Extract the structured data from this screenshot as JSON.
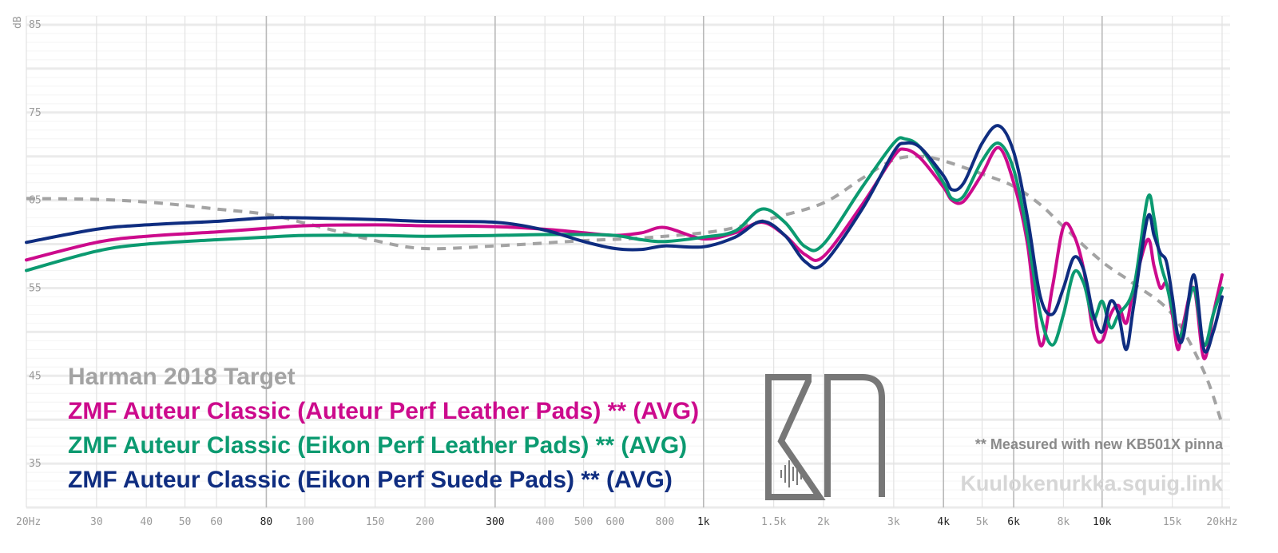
{
  "chart_data": {
    "type": "line",
    "ylabel": "dB",
    "x_scale": "log",
    "xlim": [
      20,
      20000
    ],
    "ylim": [
      30,
      86
    ],
    "y_ticks": [
      85,
      75,
      65,
      55,
      45,
      35
    ],
    "x_ticks": [
      {
        "f": 20,
        "label": "20Hz",
        "major": false
      },
      {
        "f": 30,
        "label": "30",
        "major": false
      },
      {
        "f": 40,
        "label": "40",
        "major": false
      },
      {
        "f": 50,
        "label": "50",
        "major": false
      },
      {
        "f": 60,
        "label": "60",
        "major": false
      },
      {
        "f": 80,
        "label": "80",
        "major": true
      },
      {
        "f": 100,
        "label": "100",
        "major": false
      },
      {
        "f": 150,
        "label": "150",
        "major": false
      },
      {
        "f": 200,
        "label": "200",
        "major": false
      },
      {
        "f": 300,
        "label": "300",
        "major": true
      },
      {
        "f": 400,
        "label": "400",
        "major": false
      },
      {
        "f": 500,
        "label": "500",
        "major": false
      },
      {
        "f": 600,
        "label": "600",
        "major": false
      },
      {
        "f": 800,
        "label": "800",
        "major": false
      },
      {
        "f": 1000,
        "label": "1k",
        "major": true
      },
      {
        "f": 1500,
        "label": "1.5k",
        "major": false
      },
      {
        "f": 2000,
        "label": "2k",
        "major": false
      },
      {
        "f": 3000,
        "label": "3k",
        "major": false
      },
      {
        "f": 4000,
        "label": "4k",
        "major": true
      },
      {
        "f": 5000,
        "label": "5k",
        "major": false
      },
      {
        "f": 6000,
        "label": "6k",
        "major": true
      },
      {
        "f": 8000,
        "label": "8k",
        "major": false
      },
      {
        "f": 10000,
        "label": "10k",
        "major": true
      },
      {
        "f": 15000,
        "label": "15k",
        "major": false
      },
      {
        "f": 20000,
        "label": "20kHz",
        "major": false
      }
    ],
    "series": [
      {
        "name": "Harman 2018 Target",
        "color": "#a3a3a3",
        "dashed": true,
        "points": [
          [
            20,
            65.2
          ],
          [
            30,
            65.1
          ],
          [
            40,
            64.8
          ],
          [
            50,
            64.4
          ],
          [
            60,
            64.0
          ],
          [
            80,
            63.4
          ],
          [
            100,
            62.4
          ],
          [
            150,
            60.4
          ],
          [
            200,
            59.5
          ],
          [
            300,
            59.8
          ],
          [
            500,
            60.4
          ],
          [
            700,
            60.7
          ],
          [
            1000,
            61.3
          ],
          [
            1200,
            61.9
          ],
          [
            1500,
            63.0
          ],
          [
            2000,
            64.7
          ],
          [
            2500,
            67.5
          ],
          [
            3000,
            69.6
          ],
          [
            3500,
            70.0
          ],
          [
            4000,
            69.5
          ],
          [
            5000,
            68.0
          ],
          [
            6000,
            66.6
          ],
          [
            7000,
            64.5
          ],
          [
            8000,
            62.0
          ],
          [
            10000,
            58.0
          ],
          [
            12000,
            55.5
          ],
          [
            15000,
            52.0
          ],
          [
            18000,
            45.5
          ],
          [
            20000,
            39.5
          ]
        ]
      },
      {
        "name": "ZMF Auteur Classic (Auteur Perf Leather Pads) ** (AVG)",
        "color": "#cc0a8c",
        "dashed": false,
        "points": [
          [
            20,
            58.2
          ],
          [
            30,
            60.2
          ],
          [
            40,
            60.9
          ],
          [
            60,
            61.4
          ],
          [
            80,
            61.8
          ],
          [
            100,
            62.1
          ],
          [
            150,
            62.2
          ],
          [
            200,
            62.1
          ],
          [
            300,
            62.0
          ],
          [
            400,
            61.7
          ],
          [
            500,
            61.3
          ],
          [
            600,
            61.0
          ],
          [
            700,
            61.3
          ],
          [
            800,
            61.9
          ],
          [
            1000,
            60.6
          ],
          [
            1200,
            61.3
          ],
          [
            1400,
            62.5
          ],
          [
            1600,
            61.0
          ],
          [
            1800,
            58.8
          ],
          [
            2000,
            58.6
          ],
          [
            2500,
            64.5
          ],
          [
            3000,
            70.0
          ],
          [
            3200,
            70.8
          ],
          [
            3500,
            69.8
          ],
          [
            4000,
            66.5
          ],
          [
            4200,
            65.0
          ],
          [
            4500,
            64.9
          ],
          [
            5000,
            68.0
          ],
          [
            5500,
            71.0
          ],
          [
            6000,
            67.0
          ],
          [
            6500,
            60.0
          ],
          [
            7000,
            48.5
          ],
          [
            7500,
            55.0
          ],
          [
            8000,
            62.0
          ],
          [
            8500,
            61.0
          ],
          [
            9000,
            57.0
          ],
          [
            9500,
            50.0
          ],
          [
            10000,
            49.0
          ],
          [
            10500,
            52.0
          ],
          [
            11000,
            53.0
          ],
          [
            11500,
            51.0
          ],
          [
            12000,
            55.0
          ],
          [
            13000,
            60.5
          ],
          [
            13500,
            57.5
          ],
          [
            14000,
            55.0
          ],
          [
            14500,
            55.5
          ],
          [
            15000,
            52.0
          ],
          [
            15500,
            48.0
          ],
          [
            16000,
            51.0
          ],
          [
            17000,
            55.0
          ],
          [
            18000,
            47.0
          ],
          [
            19000,
            52.0
          ],
          [
            20000,
            56.5
          ]
        ]
      },
      {
        "name": "ZMF Auteur Classic (Eikon Perf Leather Pads) ** (AVG)",
        "color": "#0b9a70",
        "dashed": false,
        "points": [
          [
            20,
            57.0
          ],
          [
            30,
            59.2
          ],
          [
            40,
            60.0
          ],
          [
            60,
            60.5
          ],
          [
            80,
            60.8
          ],
          [
            100,
            61.0
          ],
          [
            150,
            61.0
          ],
          [
            200,
            60.9
          ],
          [
            300,
            61.0
          ],
          [
            400,
            61.1
          ],
          [
            500,
            61.1
          ],
          [
            600,
            61.0
          ],
          [
            700,
            60.5
          ],
          [
            800,
            60.3
          ],
          [
            1000,
            60.8
          ],
          [
            1200,
            61.5
          ],
          [
            1400,
            64.0
          ],
          [
            1600,
            62.5
          ],
          [
            1800,
            59.7
          ],
          [
            2000,
            60.0
          ],
          [
            2500,
            66.5
          ],
          [
            3000,
            71.5
          ],
          [
            3200,
            72.0
          ],
          [
            3500,
            71.0
          ],
          [
            4000,
            67.0
          ],
          [
            4200,
            65.2
          ],
          [
            4500,
            65.5
          ],
          [
            5000,
            69.5
          ],
          [
            5500,
            71.5
          ],
          [
            6000,
            68.5
          ],
          [
            6500,
            61.0
          ],
          [
            7000,
            52.0
          ],
          [
            7500,
            48.5
          ],
          [
            8000,
            52.0
          ],
          [
            8500,
            56.8
          ],
          [
            9000,
            55.5
          ],
          [
            9500,
            51.5
          ],
          [
            10000,
            53.5
          ],
          [
            10500,
            50.5
          ],
          [
            11000,
            52.0
          ],
          [
            12000,
            55.0
          ],
          [
            13000,
            65.2
          ],
          [
            13500,
            63.0
          ],
          [
            14000,
            58.0
          ],
          [
            14500,
            55.5
          ],
          [
            15000,
            52.5
          ],
          [
            15500,
            49.5
          ],
          [
            16000,
            50.5
          ],
          [
            17000,
            55.0
          ],
          [
            18000,
            48.5
          ],
          [
            19000,
            52.0
          ],
          [
            20000,
            55.0
          ]
        ]
      },
      {
        "name": "ZMF Auteur Classic (Eikon Perf Suede Pads) ** (AVG)",
        "color": "#0f2d80",
        "dashed": false,
        "points": [
          [
            20,
            60.2
          ],
          [
            30,
            61.7
          ],
          [
            40,
            62.2
          ],
          [
            60,
            62.6
          ],
          [
            80,
            63.0
          ],
          [
            100,
            63.0
          ],
          [
            150,
            62.8
          ],
          [
            200,
            62.6
          ],
          [
            300,
            62.5
          ],
          [
            400,
            61.6
          ],
          [
            500,
            60.3
          ],
          [
            600,
            59.5
          ],
          [
            700,
            59.4
          ],
          [
            800,
            59.8
          ],
          [
            1000,
            59.7
          ],
          [
            1200,
            60.8
          ],
          [
            1400,
            62.6
          ],
          [
            1600,
            61.0
          ],
          [
            1800,
            58.0
          ],
          [
            2000,
            57.8
          ],
          [
            2500,
            64.0
          ],
          [
            3000,
            70.5
          ],
          [
            3200,
            71.5
          ],
          [
            3500,
            71.0
          ],
          [
            4000,
            67.8
          ],
          [
            4200,
            66.2
          ],
          [
            4500,
            67.0
          ],
          [
            5000,
            71.5
          ],
          [
            5500,
            73.5
          ],
          [
            6000,
            70.5
          ],
          [
            6500,
            63.0
          ],
          [
            7000,
            54.0
          ],
          [
            7500,
            52.0
          ],
          [
            8000,
            55.0
          ],
          [
            8500,
            58.5
          ],
          [
            9000,
            57.0
          ],
          [
            9500,
            52.0
          ],
          [
            10000,
            50.0
          ],
          [
            10500,
            53.5
          ],
          [
            11000,
            52.0
          ],
          [
            11500,
            48.0
          ],
          [
            12000,
            53.0
          ],
          [
            13000,
            63.0
          ],
          [
            13500,
            61.0
          ],
          [
            14000,
            59.0
          ],
          [
            14500,
            58.0
          ],
          [
            15000,
            54.0
          ],
          [
            15500,
            49.5
          ],
          [
            16000,
            49.5
          ],
          [
            17000,
            56.5
          ],
          [
            18000,
            48.0
          ],
          [
            19000,
            50.0
          ],
          [
            20000,
            54.0
          ]
        ]
      }
    ]
  },
  "annotations": {
    "note": "** Measured with new KB501X pinna",
    "site": "Kuulokenurkka.squig.link"
  },
  "logo": {
    "name": "kn-logo",
    "color": "#777777"
  }
}
